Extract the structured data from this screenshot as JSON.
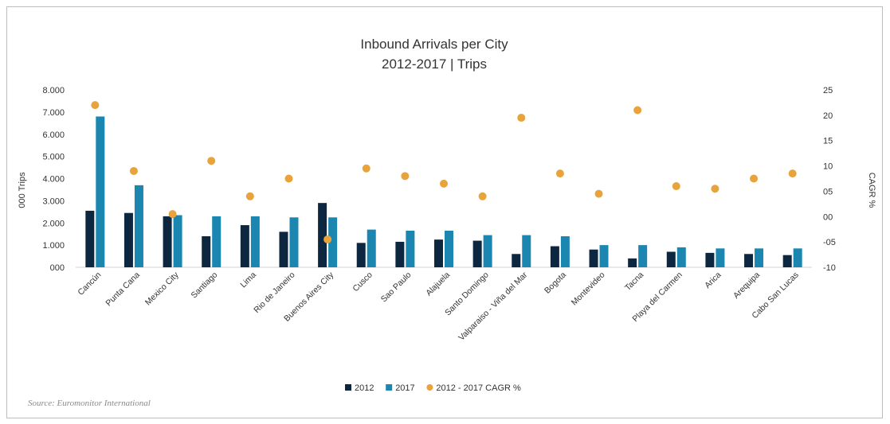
{
  "chart_data": {
    "type": "bar",
    "title": "Inbound Arrivals per City",
    "subtitle": "2012-2017 | Trips",
    "ylabel": "000 Trips",
    "y2label": "CAGR %",
    "ylim": [
      0,
      8000
    ],
    "y2lim": [
      -10,
      25
    ],
    "y_ticks": [
      "8.000",
      "7.000",
      "6.000",
      "5.000",
      "4.000",
      "3.000",
      "2.000",
      "1.000",
      "000"
    ],
    "y2_ticks": [
      "25",
      "20",
      "15",
      "10",
      "05",
      "00",
      "-05",
      "-10"
    ],
    "categories": [
      "Cancún",
      "Punta Cana",
      "Mexico City",
      "Santiago",
      "Lima",
      "Rio de Janeiro",
      "Buenos Aires City",
      "Cusco",
      "Sao Paulo",
      "Alajuela",
      "Santo Domingo",
      "Valparaiso - Viña del Mar",
      "Bogota",
      "Montevideo",
      "Tacna",
      "Playa del Carmen",
      "Arica",
      "Arequipa",
      "Cabo San Lucas"
    ],
    "series": [
      {
        "name": "2012",
        "color": "#0d2740",
        "values": [
          2550,
          2450,
          2300,
          1400,
          1900,
          1600,
          2900,
          1100,
          1150,
          1250,
          1200,
          600,
          950,
          800,
          400,
          700,
          650,
          600,
          550
        ]
      },
      {
        "name": "2017",
        "color": "#1b86b0",
        "values": [
          6800,
          3700,
          2350,
          2300,
          2300,
          2250,
          2250,
          1700,
          1650,
          1650,
          1450,
          1450,
          1400,
          1000,
          1000,
          900,
          850,
          850,
          850
        ]
      },
      {
        "name": "2012 - 2017 CAGR %",
        "color": "#e8a33c",
        "values": [
          22,
          9,
          0.5,
          11,
          4,
          7.5,
          -4.5,
          9.5,
          8,
          6.5,
          4,
          19.5,
          8.5,
          4.5,
          21,
          6,
          5.5,
          7.5,
          8.5
        ]
      }
    ],
    "legend_position": "bottom",
    "grid": false
  },
  "source": "Source: Euromonitor International"
}
